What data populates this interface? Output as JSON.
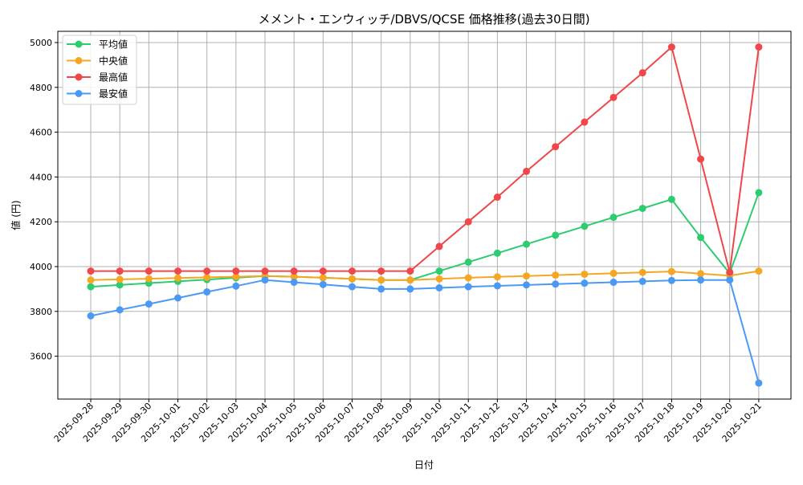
{
  "chart_data": {
    "type": "line",
    "title": "メメント・エンウィッチ/DBVS/QCSE 価格推移(過去30日間)",
    "xlabel": "日付",
    "ylabel": "値 (円)",
    "ylim": [
      3490,
      5050
    ],
    "yticks": [
      3600,
      3800,
      4000,
      4200,
      4400,
      4600,
      4800,
      5000
    ],
    "grid": true,
    "legend_position": "upper left",
    "x": [
      "2025-09-28",
      "2025-09-29",
      "2025-09-30",
      "2025-10-01",
      "2025-10-02",
      "2025-10-03",
      "2025-10-04",
      "2025-10-05",
      "2025-10-06",
      "2025-10-07",
      "2025-10-08",
      "2025-10-09",
      "2025-10-10",
      "2025-10-11",
      "2025-10-12",
      "2025-10-13",
      "2025-10-14",
      "2025-10-15",
      "2025-10-16",
      "2025-10-17",
      "2025-10-18",
      "2025-10-19",
      "2025-10-20",
      "2025-10-21"
    ],
    "series": [
      {
        "name": "平均値",
        "color": "#2ecc71",
        "values": [
          3910,
          3918,
          3926,
          3934,
          3942,
          3950,
          3958,
          3955,
          3950,
          3945,
          3940,
          3940,
          3980,
          4020,
          4060,
          4100,
          4140,
          4180,
          4220,
          4260,
          4300,
          4130,
          3970,
          4330
        ]
      },
      {
        "name": "中央値",
        "color": "#f5a623",
        "values": [
          3940,
          3943,
          3946,
          3949,
          3952,
          3955,
          3958,
          3955,
          3950,
          3945,
          3940,
          3940,
          3945,
          3950,
          3954,
          3958,
          3962,
          3966,
          3970,
          3974,
          3978,
          3968,
          3960,
          3980
        ]
      },
      {
        "name": "最高値",
        "color": "#f0474a",
        "values": [
          3980,
          3980,
          3980,
          3980,
          3980,
          3980,
          3980,
          3980,
          3980,
          3980,
          3980,
          3980,
          4090,
          4200,
          4310,
          4425,
          4535,
          4645,
          4755,
          4865,
          4980,
          4480,
          3975,
          4980
        ]
      },
      {
        "name": "最安値",
        "color": "#4a9af5",
        "values": [
          3780,
          3807,
          3833,
          3860,
          3887,
          3913,
          3940,
          3930,
          3920,
          3910,
          3900,
          3900,
          3905,
          3910,
          3914,
          3918,
          3922,
          3926,
          3930,
          3934,
          3938,
          3940,
          3940,
          3480
        ]
      }
    ]
  }
}
